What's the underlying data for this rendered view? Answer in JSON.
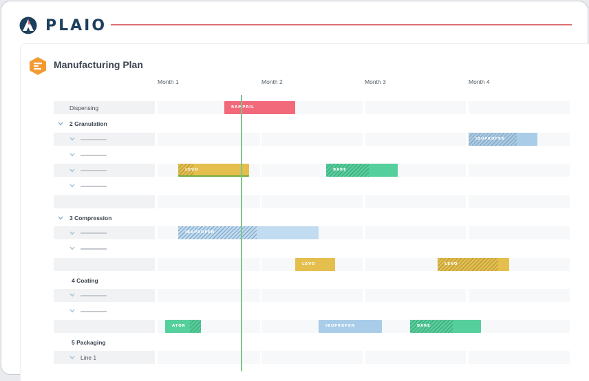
{
  "brand": {
    "name": "PLAIO",
    "accent": "#de6f73",
    "navy": "#1d3f5e"
  },
  "plan": {
    "title": "Manufacturing Plan",
    "months": [
      "Month 1",
      "Month 2",
      "Month 3",
      "Month 4"
    ]
  },
  "rows": {
    "dispensing": "Dispensing",
    "granulation": "2 Granulation",
    "compression": "3 Compression",
    "coating": "4 Coating",
    "packaging": "5 Packaging",
    "line1": "Line 1"
  },
  "bars": {
    "rampril": "RAMPRIL",
    "ibuprofen_a": "IBUPROFEN",
    "levo_a": "LEVO",
    "bare_a": "BARE",
    "ibuprofen_b": "IBUPROFEN",
    "levo_b": "LEVO",
    "levo_c": "LEVO",
    "ator": "ATOR",
    "ibuprofen_c": "IBUPROFEN",
    "bare_b": "BARE"
  },
  "colors": {
    "red": "#f2697b",
    "blue": "#a9cde8",
    "yellow": "#e5bf4e",
    "green": "#55cf9b"
  }
}
